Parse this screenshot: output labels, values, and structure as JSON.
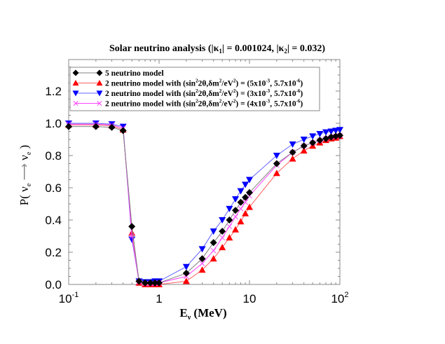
{
  "chart_data": {
    "type": "line",
    "title": "Solar neutrino analysis (|κ1| = 0.001024, |κ2| = 0.032)",
    "title_parts": {
      "prefix": "Solar neutrino analysis (|κ",
      "sub1": "1",
      "mid": "| = 0.001024, |κ",
      "sub2": "2",
      "suffix": "| = 0.032)"
    },
    "xlabel": "Eν (MeV)",
    "xlabel_parts": {
      "main": "E",
      "sub": "ν",
      "unit": " (MeV)"
    },
    "ylabel": "P( νe ⟶ νe )",
    "xscale": "log",
    "xlim": [
      0.1,
      100
    ],
    "ylim": [
      0.0,
      1.4
    ],
    "x_ticks": [
      {
        "base": "10",
        "exp": "-1",
        "value": 0.1
      },
      {
        "base": "1",
        "exp": "",
        "value": 1
      },
      {
        "base": "10",
        "exp": "",
        "value": 10
      },
      {
        "base": "10",
        "exp": "2",
        "value": 100
      }
    ],
    "y_ticks": [
      "0.0",
      "0.2",
      "0.4",
      "0.6",
      "0.8",
      "1.0",
      "1.2"
    ],
    "grid": false,
    "legend_position": "upper left",
    "x": [
      0.1,
      0.2,
      0.3,
      0.4,
      0.5,
      0.6,
      0.7,
      0.8,
      0.9,
      1,
      2,
      3,
      4,
      5,
      6,
      7,
      8,
      9,
      10,
      20,
      30,
      40,
      50,
      60,
      70,
      80,
      90,
      100
    ],
    "series": [
      {
        "name": "5 neutrino model",
        "legend_main": "5 neutrino model",
        "color": "#000000",
        "line_color": "#808080",
        "marker": "diamond",
        "values": [
          0.98,
          0.98,
          0.975,
          0.955,
          0.36,
          0.02,
          0.01,
          0.01,
          0.01,
          0.01,
          0.07,
          0.16,
          0.26,
          0.33,
          0.4,
          0.46,
          0.51,
          0.54,
          0.57,
          0.75,
          0.82,
          0.86,
          0.88,
          0.895,
          0.905,
          0.915,
          0.92,
          0.925
        ]
      },
      {
        "name": "2 neutrino model with (sin²2θ,δm²/eV²) = (5x10⁻³, 5.7x10⁻⁶)",
        "legend_main": "2 neutrino model with (sin",
        "legend_vals": "(5x10",
        "color": "#ff0000",
        "line_color": "#ff6060",
        "marker": "triangle-up",
        "values": [
          0.99,
          0.99,
          0.985,
          0.96,
          0.32,
          0.01,
          0.0,
          0.0,
          0.0,
          0.0,
          0.02,
          0.09,
          0.16,
          0.23,
          0.29,
          0.34,
          0.39,
          0.44,
          0.48,
          0.69,
          0.78,
          0.83,
          0.86,
          0.88,
          0.895,
          0.905,
          0.91,
          0.92
        ]
      },
      {
        "name": "2 neutrino model with (sin²2θ,δm²/eV²) = (3x10⁻³, 5.7x10⁻⁶)",
        "legend_main": "2 neutrino model with (sin",
        "legend_vals": "(3x10",
        "color": "#0000ff",
        "line_color": "#6060ff",
        "marker": "triangle-down",
        "values": [
          1.0,
          1.0,
          0.995,
          0.98,
          0.28,
          0.02,
          0.015,
          0.015,
          0.02,
          0.02,
          0.11,
          0.22,
          0.33,
          0.4,
          0.47,
          0.53,
          0.58,
          0.62,
          0.65,
          0.8,
          0.87,
          0.9,
          0.92,
          0.935,
          0.945,
          0.95,
          0.955,
          0.96
        ]
      },
      {
        "name": "2 neutrino model with (sin²2θ,δm²/eV²) = (4x10⁻³, 5.7x10⁻⁶)",
        "legend_main": "2 neutrino model with (sin",
        "legend_vals": "(4x10",
        "color": "#ff44ff",
        "line_color": "#ff44ff",
        "marker": "x",
        "values": [
          0.995,
          0.995,
          0.99,
          0.97,
          0.3,
          0.015,
          0.005,
          0.005,
          0.005,
          0.01,
          0.05,
          0.13,
          0.21,
          0.29,
          0.36,
          0.42,
          0.47,
          0.51,
          0.55,
          0.74,
          0.82,
          0.86,
          0.88,
          0.895,
          0.905,
          0.915,
          0.92,
          0.925
        ]
      }
    ],
    "legend_common": {
      "mid": "2θ,δm",
      "mid2": "/eV",
      "mid3": ") = ",
      "exp_a": "-3",
      "sep": ", 5.7x10",
      "exp_b": "-6",
      "close": ")",
      "sup2": "2"
    }
  }
}
